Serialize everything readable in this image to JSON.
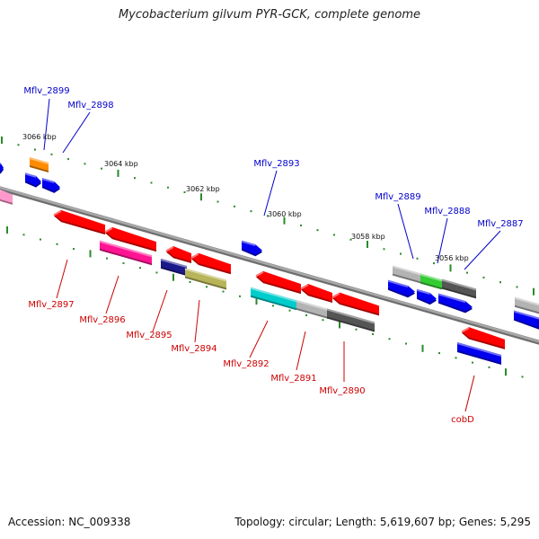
{
  "header": {
    "title": "Mycobacterium gilvum PYR-GCK, complete genome"
  },
  "footer": {
    "accession": "Accession: NC_009338",
    "summary": "Topology: circular; Length: 5,619,607 bp; Genes: 5,295"
  },
  "colors": {
    "backbone": "#8a8a8a",
    "forward_label": "#0000cc",
    "reverse_label": "#cc0000",
    "tick": "#2a8a2a"
  },
  "scale_labels": [
    "3066 kbp",
    "3064 kbp",
    "3062 kbp",
    "3060 kbp",
    "3058 kbp",
    "3056 kbp"
  ],
  "forward_genes": [
    "Mflv_2899",
    "Mflv_2898",
    "Mflv_2893",
    "Mflv_2889",
    "Mflv_2888",
    "Mflv_2887"
  ],
  "reverse_genes": [
    "Mflv_2897",
    "Mflv_2896",
    "Mflv_2895",
    "Mflv_2894",
    "Mflv_2892",
    "Mflv_2891",
    "Mflv_2890",
    "cobD"
  ],
  "feature_colors": [
    "#ff0000",
    "#ff1493",
    "#1a1a8a",
    "#b8b45a",
    "#00cccc",
    "#b3b3b3",
    "#555555",
    "#33cc33",
    "#0000ee",
    "#ff8c00",
    "#ff99cc"
  ]
}
